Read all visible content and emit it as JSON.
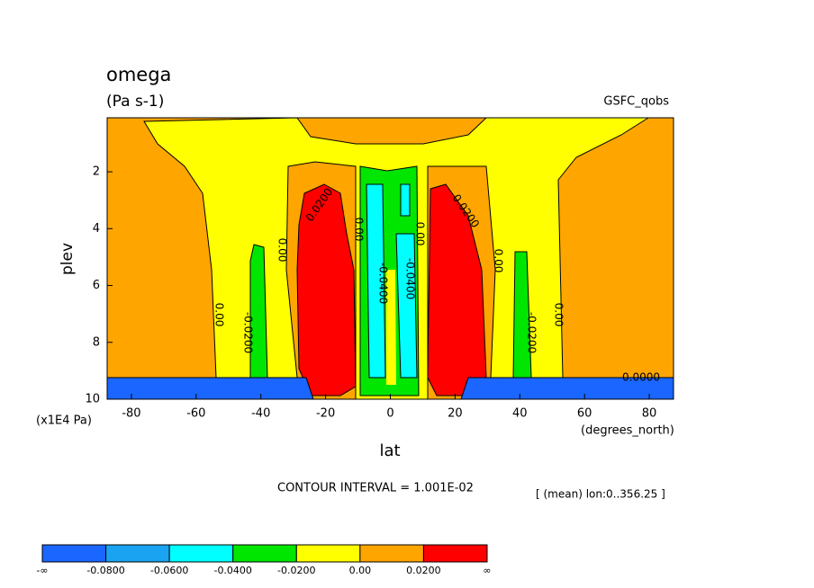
{
  "chart_data": {
    "type": "contour",
    "title": "omega",
    "units": "(Pa s-1)",
    "dataset": "GSFC_qobs",
    "x_label": "lat",
    "x_units": "(degrees_north)",
    "y_label": "plev",
    "y_units": "(x1E4 Pa)",
    "xlim": [
      -87.5,
      87.5
    ],
    "ylim": [
      10,
      0.1
    ],
    "xticks": [
      -80,
      -60,
      -40,
      -20,
      0,
      20,
      40,
      60,
      80
    ],
    "yticks": [
      2,
      4,
      6,
      8,
      10
    ],
    "contour_interval": "CONTOUR INTERVAL = 1.001E-02",
    "subset": "[ (mean) lon:0..356.25 ]",
    "colorbar_ticks": [
      "-∞",
      {
        "value": -0.08,
        "label": "-0.0800"
      },
      {
        "value": -0.06,
        "label": "-0.0600"
      },
      {
        "value": -0.04,
        "label": "-0.0400"
      },
      {
        "value": -0.02,
        "label": "-0.0200"
      },
      {
        "value": 0,
        "label": "0.00"
      },
      {
        "value": 0.02,
        "label": "0.0200"
      },
      "∞"
    ],
    "colorbar_colors": [
      "#1a66ff",
      "#1aa3f0",
      "#00ffff",
      "#00e600",
      "#ffff00",
      "#ffa500",
      "#ff0000"
    ],
    "contour_labels": [
      {
        "value": 0.02,
        "label": "0.0200"
      },
      {
        "value": 0,
        "label": "0.00"
      },
      {
        "value": 0,
        "label": "0.00"
      },
      {
        "value": -0.02,
        "label": "-0.0200"
      },
      {
        "value": 0,
        "label": "0.00"
      },
      {
        "value": -0.04,
        "label": "-0.0400"
      },
      {
        "value": 0,
        "label": "0.00"
      },
      {
        "value": -0.04,
        "label": "-0.0400"
      },
      {
        "value": 0.02,
        "label": "0.0200"
      },
      {
        "value": 0,
        "label": "0.00"
      },
      {
        "value": -0.02,
        "label": "-0.0200"
      },
      {
        "value": 0,
        "label": "0.00"
      },
      {
        "value": 0,
        "label": "0.0000"
      }
    ]
  }
}
